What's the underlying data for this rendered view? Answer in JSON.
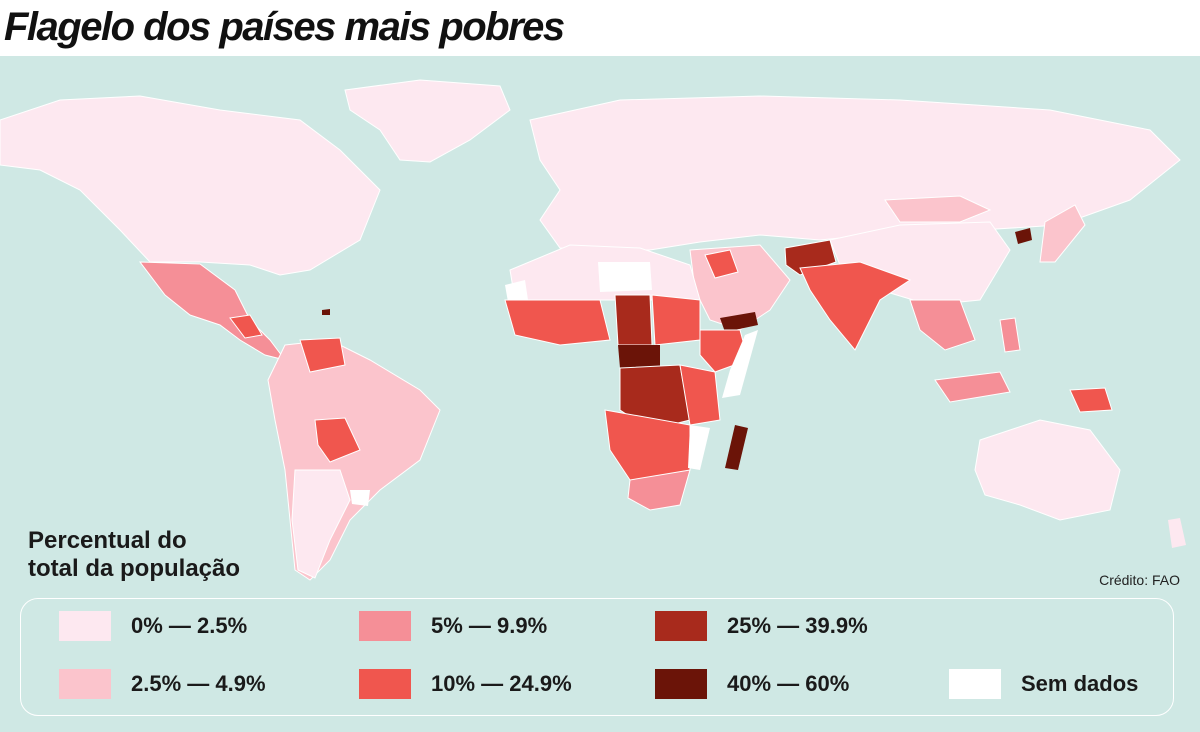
{
  "title": "Flagelo dos países mais pobres",
  "legend": {
    "heading_line1": "Percentual do",
    "heading_line2": "total da população",
    "items": [
      {
        "label": "0% — 2.5%",
        "color": "#fde8f0"
      },
      {
        "label": "2.5% — 4.9%",
        "color": "#fbc4cc"
      },
      {
        "label": "5% — 9.9%",
        "color": "#f58f97"
      },
      {
        "label": "10% — 24.9%",
        "color": "#f0564e"
      },
      {
        "label": "25% — 39.9%",
        "color": "#a82a1c"
      },
      {
        "label": "40% — 60%",
        "color": "#6b1408"
      },
      {
        "label": "Sem dados",
        "color": "#ffffff"
      }
    ]
  },
  "credit": "Crédito: FAO",
  "colors": {
    "ocean": "#cfe8e4"
  }
}
